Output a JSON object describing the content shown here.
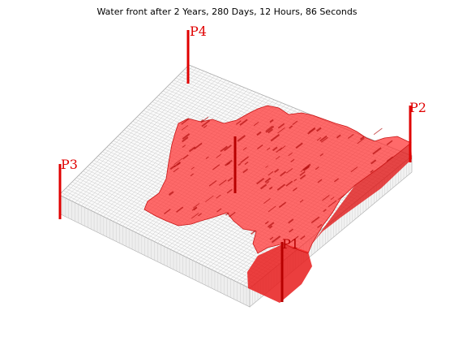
{
  "title": "Water front after 2 Years, 280 Days, 12 Hours, 86 Seconds",
  "colors": {
    "background": "#ffffff",
    "grid_line": "#c8c8c8",
    "grid_edge": "#a9a9a9",
    "water_front": "#ff2a2a",
    "water_front_dark": "#b40f0f",
    "well": "#e00000"
  },
  "wells": [
    {
      "id": "P1",
      "label": "P1"
    },
    {
      "id": "P2",
      "label": "P2"
    },
    {
      "id": "P3",
      "label": "P3"
    },
    {
      "id": "P4",
      "label": "P4"
    },
    {
      "id": "I1",
      "label": ""
    }
  ]
}
